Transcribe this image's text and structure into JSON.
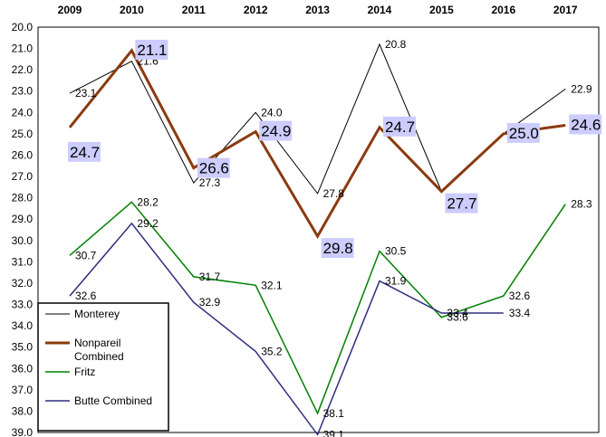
{
  "chart_data": {
    "type": "line",
    "title": "",
    "xlabel": "",
    "ylabel": "",
    "x": [
      "2009",
      "2010",
      "2011",
      "2012",
      "2013",
      "2014",
      "2015",
      "2016",
      "2017"
    ],
    "x_axis_position": "top",
    "y_inverted": true,
    "ylim": [
      20.0,
      39.0
    ],
    "yticks": [
      "20.0",
      "21.0",
      "22.0",
      "23.0",
      "24.0",
      "25.0",
      "26.0",
      "27.0",
      "28.0",
      "29.0",
      "30.0",
      "31.0",
      "32.0",
      "33.0",
      "34.0",
      "35.0",
      "36.0",
      "37.0",
      "38.0",
      "39.0"
    ],
    "grid": false,
    "legend_position": "bottom-left",
    "series": [
      {
        "name": "Monterey",
        "color": "#000000",
        "width": 1,
        "values": [
          23.1,
          21.6,
          27.3,
          24.0,
          27.8,
          20.8,
          27.7,
          25.0,
          22.9
        ],
        "labels": [
          "23.1",
          "21.6",
          "27.3",
          "24.0",
          "27.8",
          "20.8",
          "",
          "",
          "22.9"
        ]
      },
      {
        "name": "Nonpareil Combined",
        "color": "#8B3A0E",
        "width": 3,
        "values": [
          24.7,
          21.1,
          26.6,
          24.9,
          29.8,
          24.7,
          27.7,
          25.0,
          24.6
        ],
        "labels": [
          "24.7",
          "21.1",
          "26.6",
          "24.9",
          "29.8",
          "24.7",
          "27.7",
          "25.0",
          "24.6"
        ],
        "label_box": "#ccccff"
      },
      {
        "name": "Fritz",
        "color": "#008000",
        "width": 1.5,
        "values": [
          30.7,
          28.2,
          31.7,
          32.1,
          38.1,
          30.5,
          33.6,
          32.6,
          28.3
        ],
        "labels": [
          "30.7",
          "28.2",
          "31.7",
          "32.1",
          "38.1",
          "30.5",
          "33.6",
          "32.6",
          "28.3"
        ]
      },
      {
        "name": "Butte Combined",
        "color": "#2E2E7E",
        "width": 1.5,
        "values": [
          32.6,
          29.2,
          32.9,
          35.2,
          39.1,
          31.9,
          33.4,
          33.4,
          null
        ],
        "labels": [
          "32.6",
          "29.2",
          "32.9",
          "35.2",
          "39.1",
          "31.9",
          "33.4",
          "33.4",
          ""
        ]
      }
    ]
  }
}
